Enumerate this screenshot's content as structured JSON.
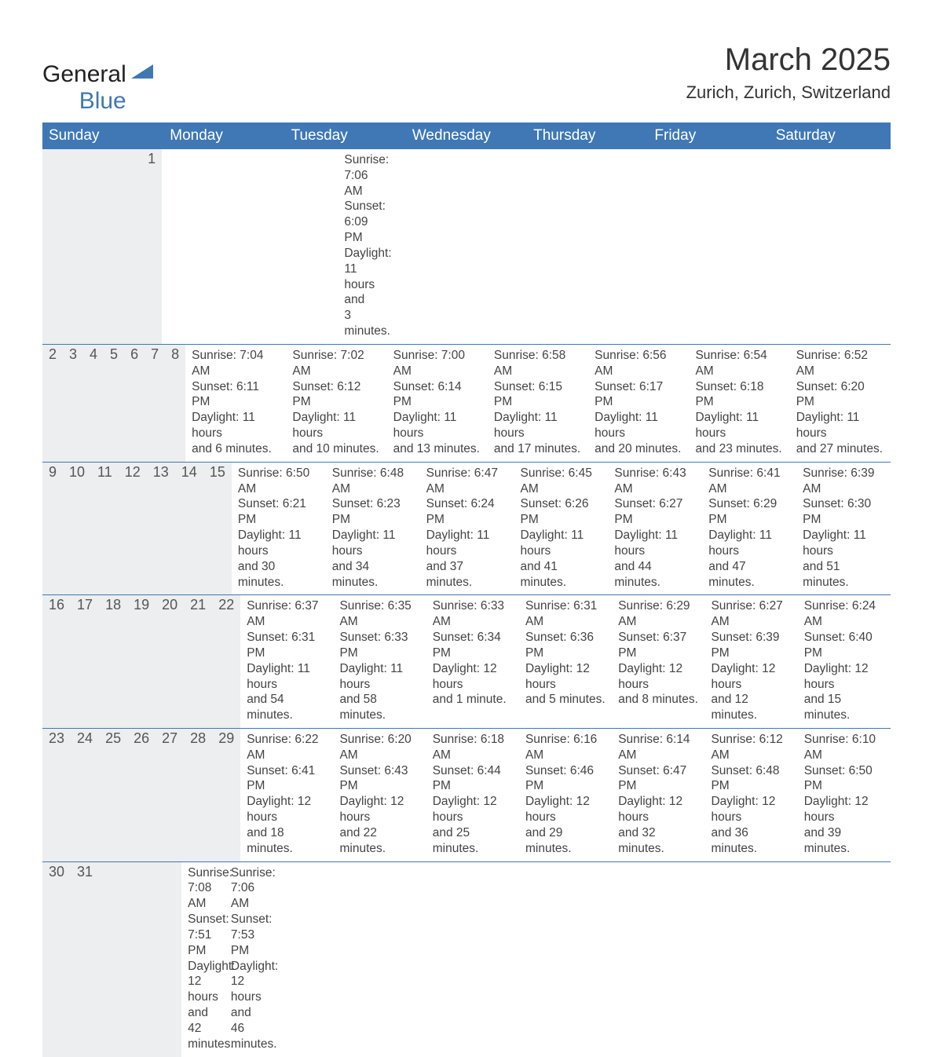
{
  "brand": {
    "word1": "General",
    "word2": "Blue",
    "color_primary": "#3f78b5",
    "color_text": "#222222"
  },
  "header": {
    "title": "March 2025",
    "location": "Zurich, Zurich, Switzerland"
  },
  "colors": {
    "header_bg": "#3f78b5",
    "header_fg": "#ffffff",
    "daynum_bg": "#eceeef",
    "body_text": "#444444",
    "row_border": "#3f78b5",
    "page_bg": "#ffffff"
  },
  "typography": {
    "title_fontsize": 40,
    "subtitle_fontsize": 22,
    "weekday_fontsize": 19,
    "daynum_fontsize": 18,
    "body_fontsize": 15.5,
    "font_family": "Arial"
  },
  "calendar": {
    "columns": [
      "Sunday",
      "Monday",
      "Tuesday",
      "Wednesday",
      "Thursday",
      "Friday",
      "Saturday"
    ],
    "weeks": [
      [
        null,
        null,
        null,
        null,
        null,
        null,
        {
          "day": "1",
          "sunrise": "Sunrise: 7:06 AM",
          "sunset": "Sunset: 6:09 PM",
          "daylight1": "Daylight: 11 hours",
          "daylight2": "and 3 minutes."
        }
      ],
      [
        {
          "day": "2",
          "sunrise": "Sunrise: 7:04 AM",
          "sunset": "Sunset: 6:11 PM",
          "daylight1": "Daylight: 11 hours",
          "daylight2": "and 6 minutes."
        },
        {
          "day": "3",
          "sunrise": "Sunrise: 7:02 AM",
          "sunset": "Sunset: 6:12 PM",
          "daylight1": "Daylight: 11 hours",
          "daylight2": "and 10 minutes."
        },
        {
          "day": "4",
          "sunrise": "Sunrise: 7:00 AM",
          "sunset": "Sunset: 6:14 PM",
          "daylight1": "Daylight: 11 hours",
          "daylight2": "and 13 minutes."
        },
        {
          "day": "5",
          "sunrise": "Sunrise: 6:58 AM",
          "sunset": "Sunset: 6:15 PM",
          "daylight1": "Daylight: 11 hours",
          "daylight2": "and 17 minutes."
        },
        {
          "day": "6",
          "sunrise": "Sunrise: 6:56 AM",
          "sunset": "Sunset: 6:17 PM",
          "daylight1": "Daylight: 11 hours",
          "daylight2": "and 20 minutes."
        },
        {
          "day": "7",
          "sunrise": "Sunrise: 6:54 AM",
          "sunset": "Sunset: 6:18 PM",
          "daylight1": "Daylight: 11 hours",
          "daylight2": "and 23 minutes."
        },
        {
          "day": "8",
          "sunrise": "Sunrise: 6:52 AM",
          "sunset": "Sunset: 6:20 PM",
          "daylight1": "Daylight: 11 hours",
          "daylight2": "and 27 minutes."
        }
      ],
      [
        {
          "day": "9",
          "sunrise": "Sunrise: 6:50 AM",
          "sunset": "Sunset: 6:21 PM",
          "daylight1": "Daylight: 11 hours",
          "daylight2": "and 30 minutes."
        },
        {
          "day": "10",
          "sunrise": "Sunrise: 6:48 AM",
          "sunset": "Sunset: 6:23 PM",
          "daylight1": "Daylight: 11 hours",
          "daylight2": "and 34 minutes."
        },
        {
          "day": "11",
          "sunrise": "Sunrise: 6:47 AM",
          "sunset": "Sunset: 6:24 PM",
          "daylight1": "Daylight: 11 hours",
          "daylight2": "and 37 minutes."
        },
        {
          "day": "12",
          "sunrise": "Sunrise: 6:45 AM",
          "sunset": "Sunset: 6:26 PM",
          "daylight1": "Daylight: 11 hours",
          "daylight2": "and 41 minutes."
        },
        {
          "day": "13",
          "sunrise": "Sunrise: 6:43 AM",
          "sunset": "Sunset: 6:27 PM",
          "daylight1": "Daylight: 11 hours",
          "daylight2": "and 44 minutes."
        },
        {
          "day": "14",
          "sunrise": "Sunrise: 6:41 AM",
          "sunset": "Sunset: 6:29 PM",
          "daylight1": "Daylight: 11 hours",
          "daylight2": "and 47 minutes."
        },
        {
          "day": "15",
          "sunrise": "Sunrise: 6:39 AM",
          "sunset": "Sunset: 6:30 PM",
          "daylight1": "Daylight: 11 hours",
          "daylight2": "and 51 minutes."
        }
      ],
      [
        {
          "day": "16",
          "sunrise": "Sunrise: 6:37 AM",
          "sunset": "Sunset: 6:31 PM",
          "daylight1": "Daylight: 11 hours",
          "daylight2": "and 54 minutes."
        },
        {
          "day": "17",
          "sunrise": "Sunrise: 6:35 AM",
          "sunset": "Sunset: 6:33 PM",
          "daylight1": "Daylight: 11 hours",
          "daylight2": "and 58 minutes."
        },
        {
          "day": "18",
          "sunrise": "Sunrise: 6:33 AM",
          "sunset": "Sunset: 6:34 PM",
          "daylight1": "Daylight: 12 hours",
          "daylight2": "and 1 minute."
        },
        {
          "day": "19",
          "sunrise": "Sunrise: 6:31 AM",
          "sunset": "Sunset: 6:36 PM",
          "daylight1": "Daylight: 12 hours",
          "daylight2": "and 5 minutes."
        },
        {
          "day": "20",
          "sunrise": "Sunrise: 6:29 AM",
          "sunset": "Sunset: 6:37 PM",
          "daylight1": "Daylight: 12 hours",
          "daylight2": "and 8 minutes."
        },
        {
          "day": "21",
          "sunrise": "Sunrise: 6:27 AM",
          "sunset": "Sunset: 6:39 PM",
          "daylight1": "Daylight: 12 hours",
          "daylight2": "and 12 minutes."
        },
        {
          "day": "22",
          "sunrise": "Sunrise: 6:24 AM",
          "sunset": "Sunset: 6:40 PM",
          "daylight1": "Daylight: 12 hours",
          "daylight2": "and 15 minutes."
        }
      ],
      [
        {
          "day": "23",
          "sunrise": "Sunrise: 6:22 AM",
          "sunset": "Sunset: 6:41 PM",
          "daylight1": "Daylight: 12 hours",
          "daylight2": "and 18 minutes."
        },
        {
          "day": "24",
          "sunrise": "Sunrise: 6:20 AM",
          "sunset": "Sunset: 6:43 PM",
          "daylight1": "Daylight: 12 hours",
          "daylight2": "and 22 minutes."
        },
        {
          "day": "25",
          "sunrise": "Sunrise: 6:18 AM",
          "sunset": "Sunset: 6:44 PM",
          "daylight1": "Daylight: 12 hours",
          "daylight2": "and 25 minutes."
        },
        {
          "day": "26",
          "sunrise": "Sunrise: 6:16 AM",
          "sunset": "Sunset: 6:46 PM",
          "daylight1": "Daylight: 12 hours",
          "daylight2": "and 29 minutes."
        },
        {
          "day": "27",
          "sunrise": "Sunrise: 6:14 AM",
          "sunset": "Sunset: 6:47 PM",
          "daylight1": "Daylight: 12 hours",
          "daylight2": "and 32 minutes."
        },
        {
          "day": "28",
          "sunrise": "Sunrise: 6:12 AM",
          "sunset": "Sunset: 6:48 PM",
          "daylight1": "Daylight: 12 hours",
          "daylight2": "and 36 minutes."
        },
        {
          "day": "29",
          "sunrise": "Sunrise: 6:10 AM",
          "sunset": "Sunset: 6:50 PM",
          "daylight1": "Daylight: 12 hours",
          "daylight2": "and 39 minutes."
        }
      ],
      [
        {
          "day": "30",
          "sunrise": "Sunrise: 7:08 AM",
          "sunset": "Sunset: 7:51 PM",
          "daylight1": "Daylight: 12 hours",
          "daylight2": "and 42 minutes."
        },
        {
          "day": "31",
          "sunrise": "Sunrise: 7:06 AM",
          "sunset": "Sunset: 7:53 PM",
          "daylight1": "Daylight: 12 hours",
          "daylight2": "and 46 minutes."
        },
        null,
        null,
        null,
        null,
        null
      ]
    ]
  }
}
